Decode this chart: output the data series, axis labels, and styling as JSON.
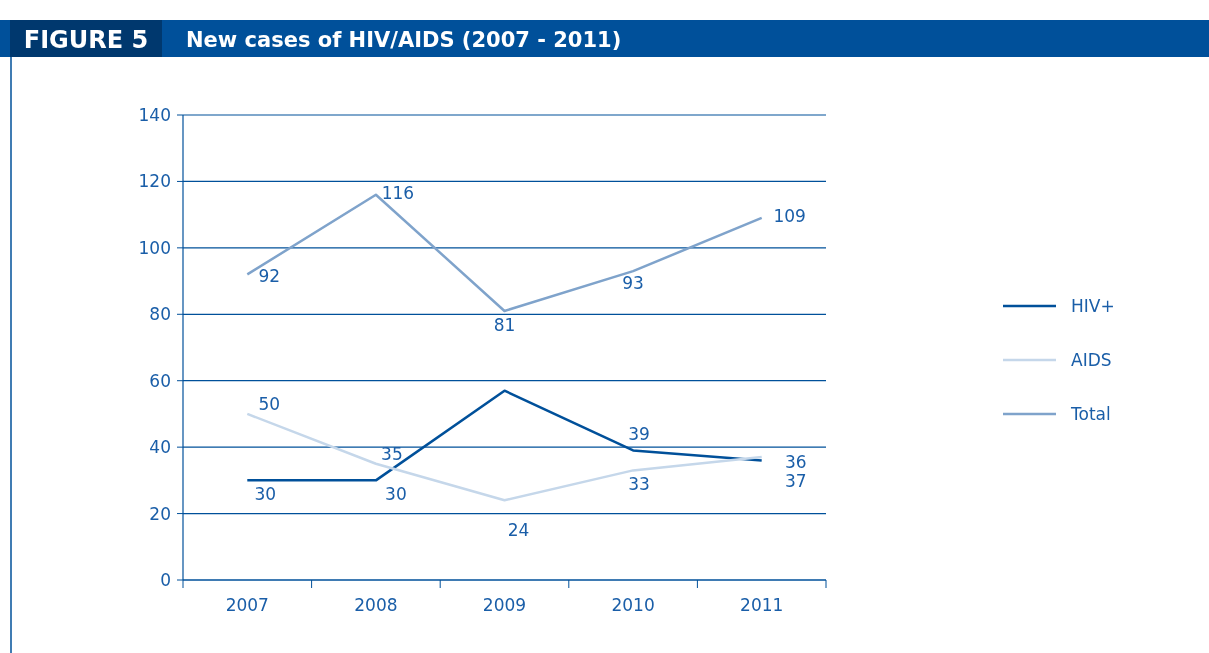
{
  "chart_data": {
    "type": "line",
    "title": "New cases of HIV/AIDS (2007 - 2011)",
    "annotations": [
      "FIGURE 5"
    ],
    "categories": [
      "2007",
      "2008",
      "2009",
      "2010",
      "2011"
    ],
    "series": [
      {
        "name": "HIV+",
        "color": "#00509a",
        "values": [
          30,
          30,
          57,
          39,
          36
        ],
        "value_labels": [
          "30",
          "30",
          null,
          "39",
          "36"
        ]
      },
      {
        "name": "AIDS",
        "color": "#c5d7ea",
        "values": [
          50,
          35,
          24,
          33,
          37
        ],
        "value_labels": [
          "50",
          "35",
          "24",
          "33",
          "37"
        ]
      },
      {
        "name": "Total",
        "color": "#7fa3cb",
        "values": [
          92,
          116,
          81,
          93,
          109
        ],
        "value_labels": [
          "92",
          "116",
          "81",
          "93",
          "109"
        ]
      }
    ],
    "ylim": [
      0,
      140
    ],
    "yticks": [
      0,
      20,
      40,
      60,
      80,
      100,
      120,
      140
    ],
    "grid": "y",
    "legend": "right",
    "marker": "none",
    "line_style": "solid"
  }
}
